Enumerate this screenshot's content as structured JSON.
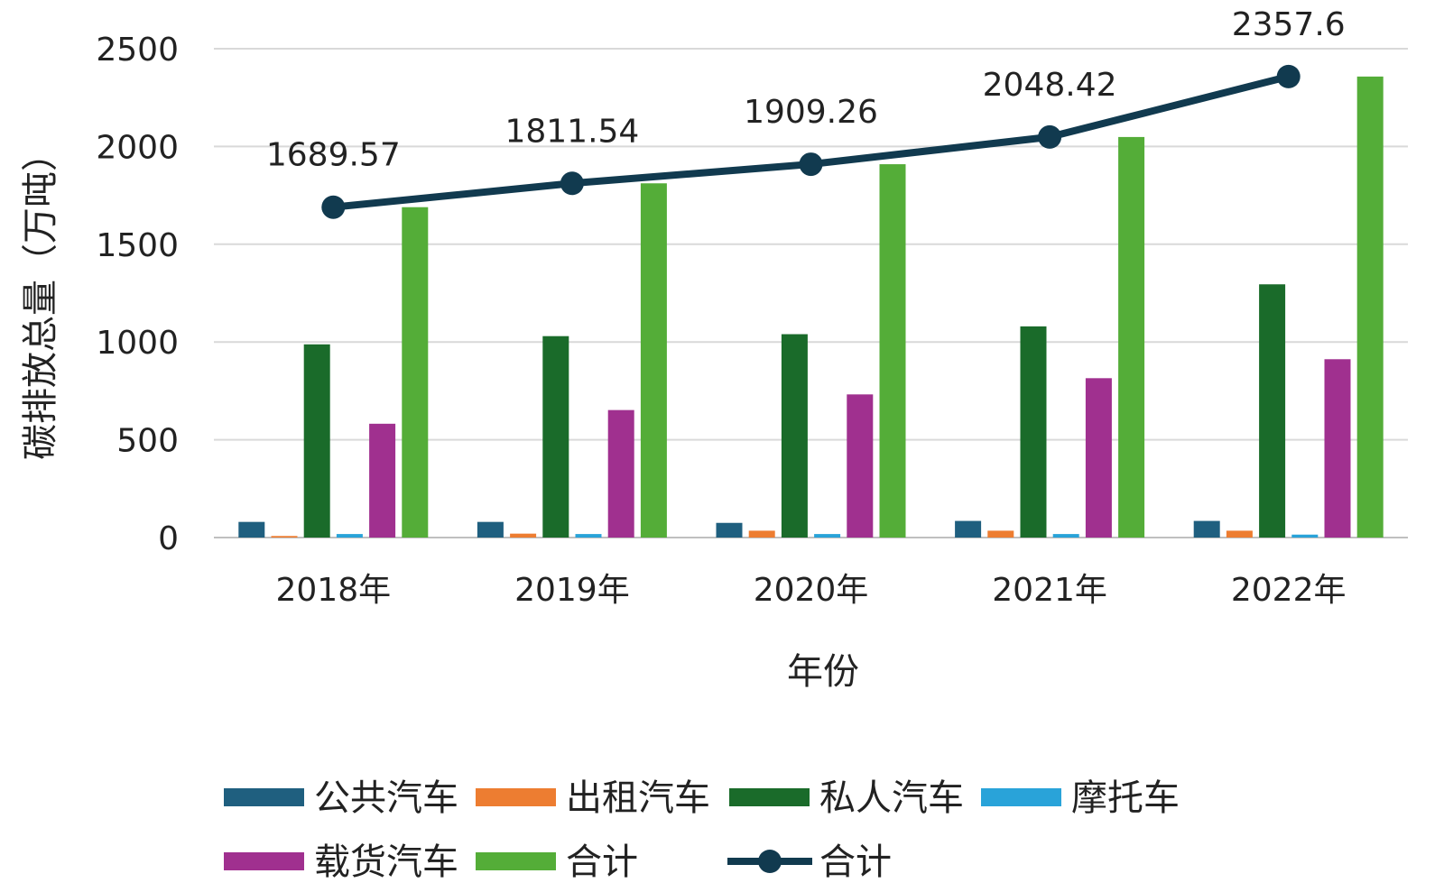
{
  "chart_data": {
    "type": "bar",
    "title": "",
    "xlabel": "年份",
    "ylabel": "碳排放总量（万吨）",
    "ylim": [
      0,
      2500
    ],
    "yticks": [
      0,
      500,
      1000,
      1500,
      2000,
      2500
    ],
    "grid": true,
    "legend_position": "bottom",
    "categories": [
      "2018年",
      "2019年",
      "2020年",
      "2021年",
      "2022年"
    ],
    "series": [
      {
        "name": "公共汽车",
        "type": "bar",
        "color": "#1f5f7f",
        "values": [
          80,
          80,
          75,
          85,
          85
        ]
      },
      {
        "name": "出租汽车",
        "type": "bar",
        "color": "#ed7d31",
        "values": [
          8,
          20,
          35,
          35,
          35
        ]
      },
      {
        "name": "私人汽车",
        "type": "bar",
        "color": "#1a6b2a",
        "values": [
          988,
          1030,
          1040,
          1080,
          1295
        ]
      },
      {
        "name": "摩托车",
        "type": "bar",
        "color": "#29a3d9",
        "values": [
          18,
          18,
          18,
          18,
          15
        ]
      },
      {
        "name": "载货汽车",
        "type": "bar",
        "color": "#a0308f",
        "values": [
          582,
          652,
          732,
          815,
          912
        ]
      },
      {
        "name": "合计",
        "type": "bar",
        "color": "#54ad38",
        "values": [
          1689.57,
          1811.54,
          1909.26,
          2048.42,
          2357.6
        ]
      },
      {
        "name": "合计",
        "type": "line",
        "color": "#113a4f",
        "values": [
          1689.57,
          1811.54,
          1909.26,
          2048.42,
          2357.6
        ],
        "data_labels": [
          "1689.57",
          "1811.54",
          "1909.26",
          "2048.42",
          "2357.6"
        ]
      }
    ]
  }
}
